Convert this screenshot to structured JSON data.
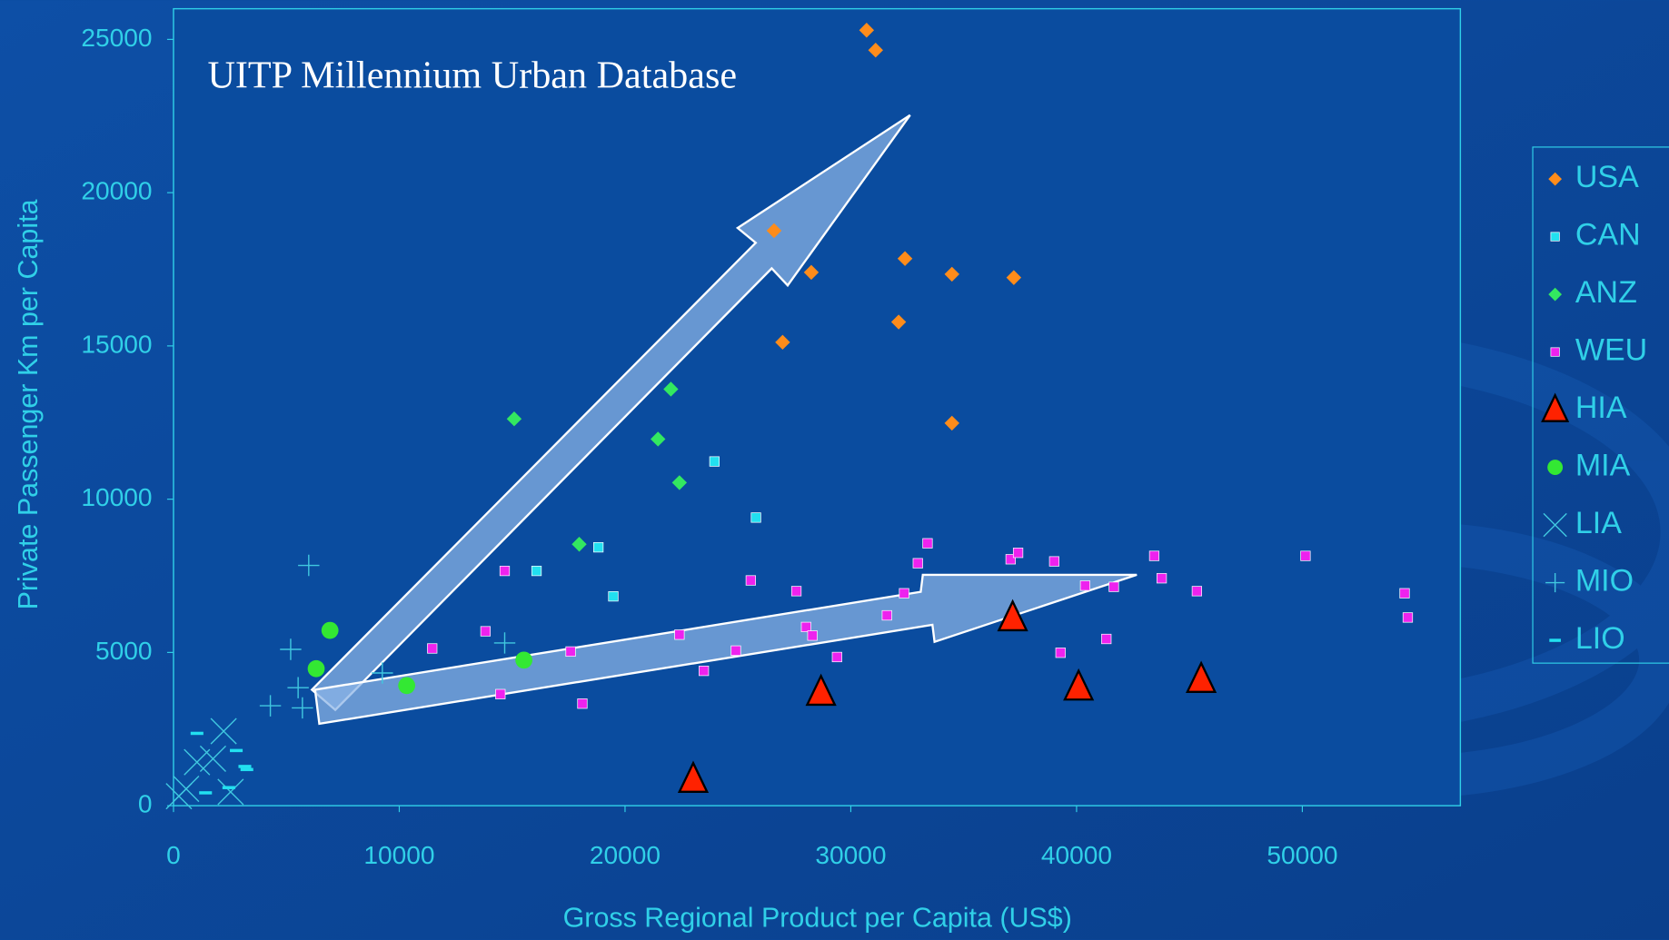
{
  "chart_data": {
    "type": "scatter",
    "annotation": "UITP Millennium Urban Database",
    "x_label": "Gross Regional Product per Capita (US$)",
    "y_label": "Private Passenger Km per Capita",
    "xlim": [
      0,
      57000
    ],
    "ylim": [
      0,
      26000
    ],
    "xticks": [
      0,
      10000,
      20000,
      30000,
      40000,
      50000
    ],
    "yticks": [
      0,
      5000,
      10000,
      15000,
      20000,
      25000
    ],
    "grid": false,
    "legend": "right",
    "series": [
      {
        "name": "USA",
        "color": "#ff8c1a",
        "marker": "diamond",
        "x": [
          30700,
          31100,
          26600,
          28250,
          32400,
          34480,
          37220,
          32120,
          26980,
          34480
        ],
        "values": [
          25300,
          24650,
          18760,
          17400,
          17850,
          17340,
          17230,
          15780,
          15120,
          12480
        ]
      },
      {
        "name": "CAN",
        "color": "#22e0f0",
        "marker": "square",
        "x": [
          23960,
          25800,
          18820,
          16080,
          19480
        ],
        "values": [
          11230,
          9400,
          8430,
          7660,
          6830
        ]
      },
      {
        "name": "ANZ",
        "color": "#33e860",
        "marker": "diamond",
        "x": [
          15090,
          22030,
          21460,
          22410,
          17970
        ],
        "values": [
          12620,
          13590,
          11960,
          10540,
          8530
        ]
      },
      {
        "name": "WEU",
        "color": "#ee22ee",
        "marker": "square",
        "x": [
          14670,
          11460,
          13820,
          14480,
          17590,
          18110,
          22410,
          23490,
          24910,
          25570,
          27590,
          28020,
          28300,
          29390,
          31600,
          32360,
          32970,
          33400,
          37080,
          37410,
          39010,
          39290,
          40380,
          41320,
          41650,
          43440,
          43770,
          45330,
          50140,
          54530,
          54670
        ],
        "values": [
          7660,
          5130,
          5690,
          3640,
          5030,
          3330,
          5580,
          4400,
          5060,
          7350,
          7000,
          5830,
          5550,
          4850,
          6210,
          6930,
          7910,
          8560,
          8040,
          8250,
          7970,
          4990,
          7180,
          5440,
          7140,
          8150,
          7420,
          7000,
          8150,
          6930,
          6140
        ]
      },
      {
        "name": "HIA",
        "color": "#ff2200",
        "marker": "triangle",
        "x": [
          23020,
          28680,
          37170,
          40090,
          45520
        ],
        "values": [
          870,
          3710,
          6140,
          3880,
          4130
        ]
      },
      {
        "name": "MIA",
        "color": "#33e833",
        "marker": "circle",
        "x": [
          6930,
          6320,
          10330,
          15520
        ],
        "values": [
          5720,
          4470,
          3920,
          4750
        ]
      },
      {
        "name": "LIA",
        "color": "#40c8e0",
        "marker": "x",
        "x": [
          2220,
          1040,
          560,
          1750,
          2530,
          240
        ],
        "values": [
          2430,
          1420,
          550,
          1530,
          450,
          310
        ]
      },
      {
        "name": "MIO",
        "color": "#40c8e0",
        "marker": "plus",
        "x": [
          5990,
          5190,
          5520,
          4290,
          5710,
          9250,
          14670
        ],
        "values": [
          7840,
          5100,
          3850,
          3260,
          3190,
          4330,
          5310
        ]
      },
      {
        "name": "LIO",
        "color": "#22e0f0",
        "marker": "dash",
        "x": [
          1040,
          2780,
          3160,
          1420,
          2450,
          3250
        ],
        "values": [
          2360,
          1800,
          1280,
          420,
          590,
          1180
        ]
      }
    ]
  }
}
